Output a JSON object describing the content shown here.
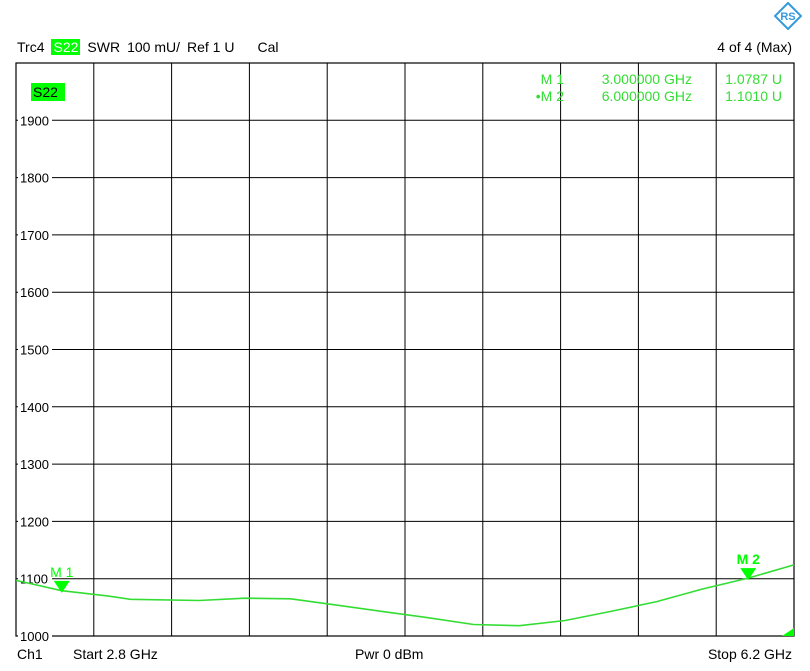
{
  "header": {
    "trace": "Trc4",
    "param": "S22",
    "format": "SWR",
    "scale": "100 mU/",
    "ref": "Ref 1 U",
    "cal": "Cal",
    "window": "4 of 4 (Max)"
  },
  "footer": {
    "channel": "Ch1",
    "start": "Start  2.8 GHz",
    "power": "Pwr  0 dBm",
    "stop": "Stop  6.2 GHz"
  },
  "colors": {
    "trace": "#33dd33",
    "grid": "#000000",
    "highlight": "#00ff00",
    "logo": "#3399dd"
  },
  "icons": {
    "logo": "rohde-schwarz-logo-icon"
  },
  "chart_data": {
    "type": "line",
    "param_label": "S22",
    "xlim": [
      2.8,
      6.2
    ],
    "ylim": [
      1000,
      2000
    ],
    "y_ticks": [
      1000,
      1100,
      1200,
      1300,
      1400,
      1500,
      1600,
      1700,
      1800,
      1900
    ],
    "y_tick_labels": [
      "1000",
      "1100",
      "1200",
      "1300",
      "1400",
      "1500",
      "1600",
      "1700",
      "1800",
      "1900"
    ],
    "x_divisions": 10,
    "y_divisions": 10,
    "grid": true,
    "series": [
      {
        "x": [
          2.8,
          3.0,
          3.2,
          3.3,
          3.6,
          3.8,
          4.0,
          4.2,
          4.4,
          4.6,
          4.8,
          5.0,
          5.2,
          5.4,
          5.6,
          5.8,
          6.0,
          6.2
        ],
        "y": [
          1097,
          1079,
          1070,
          1064,
          1062,
          1066,
          1065,
          1054,
          1043,
          1032,
          1020,
          1018,
          1027,
          1043,
          1060,
          1082,
          1101,
          1124
        ]
      }
    ],
    "markers": [
      {
        "label": "M 1",
        "legend_label": "M 1",
        "x": 3.0,
        "y": 1078.7,
        "x_text": "3.000000 GHz",
        "y_text": "1.0787 U",
        "active": false
      },
      {
        "label": "M 2",
        "legend_label": "•M 2",
        "x": 6.0,
        "y": 1101.0,
        "x_text": "6.000000 GHz",
        "y_text": "1.1010 U",
        "active": true
      }
    ]
  }
}
